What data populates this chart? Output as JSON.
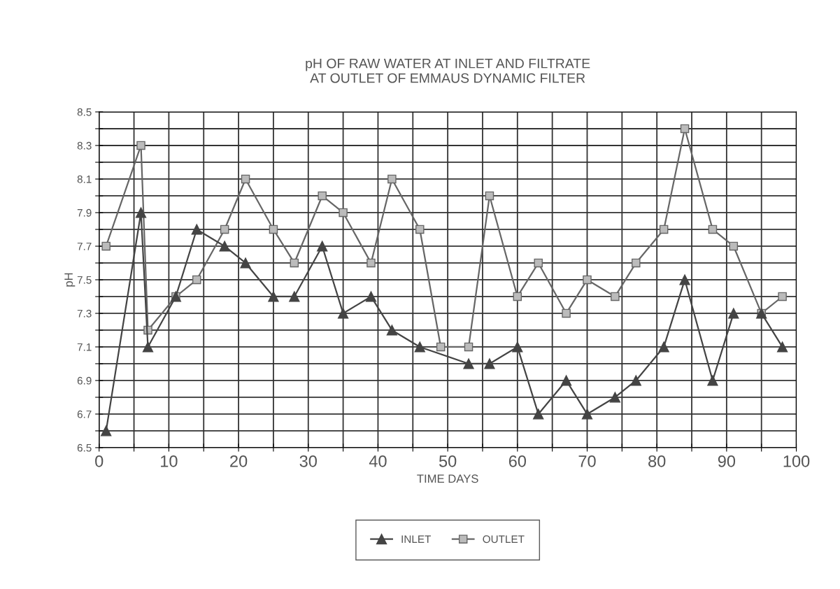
{
  "chart_data": {
    "type": "line",
    "title": "pH OF RAW WATER AT INLET AND FILTRATE\nAT OUTLET OF EMMAUS DYNAMIC FILTER",
    "xlabel": "TIME DAYS",
    "ylabel": "pH",
    "xlim": [
      0,
      100
    ],
    "xticks": [
      0,
      {
        "value": 5,
        "label": null
      },
      10,
      {
        "value": 15,
        "label": null
      },
      20,
      {
        "value": 25,
        "label": null
      },
      30,
      {
        "value": 35,
        "label": null
      },
      40,
      {
        "value": 45,
        "label": null
      },
      50,
      {
        "value": 55,
        "label": null
      },
      60,
      {
        "value": 65,
        "label": null
      },
      70,
      {
        "value": 75,
        "label": null
      },
      80,
      {
        "value": 85,
        "label": null
      },
      90,
      {
        "value": 95,
        "label": null
      },
      100
    ],
    "ylim": [
      6.5,
      8.5
    ],
    "yticks": [
      6.5,
      {
        "value": 6.6,
        "label": null
      },
      6.7,
      {
        "value": 6.8,
        "label": null
      },
      6.9,
      {
        "value": 7.0,
        "label": null
      },
      7.1,
      {
        "value": 7.2,
        "label": null
      },
      7.3,
      {
        "value": 7.4,
        "label": null
      },
      7.5,
      {
        "value": 7.6,
        "label": null
      },
      7.7,
      {
        "value": 7.8,
        "label": null
      },
      7.9,
      {
        "value": 8.0,
        "label": null
      },
      8.1,
      {
        "value": 8.2,
        "label": null
      },
      8.3,
      {
        "value": 8.4,
        "label": null
      },
      8.5
    ],
    "grid": true,
    "legend": "bottom",
    "line_style": "solid",
    "series": [
      {
        "name": "INLET",
        "color": "#444444",
        "marker": "triangle",
        "x": [
          1,
          6,
          7,
          11,
          14,
          18,
          21,
          25,
          28,
          32,
          35,
          39,
          42,
          46,
          53,
          56,
          60,
          63,
          67,
          70,
          74,
          77,
          81,
          84,
          88,
          91,
          95,
          98
        ],
        "values": [
          6.6,
          7.9,
          7.1,
          7.4,
          7.8,
          7.7,
          7.6,
          7.4,
          7.4,
          7.7,
          7.3,
          7.4,
          7.2,
          7.1,
          7.0,
          7.0,
          7.1,
          6.7,
          6.9,
          6.7,
          6.8,
          6.9,
          7.1,
          7.5,
          6.9,
          7.3,
          7.3,
          7.1
        ]
      },
      {
        "name": "OUTLET",
        "color": "#666666",
        "marker": "square",
        "x": [
          1,
          6,
          7,
          11,
          14,
          18,
          21,
          25,
          28,
          32,
          35,
          39,
          42,
          46,
          49,
          53,
          56,
          60,
          63,
          67,
          70,
          74,
          77,
          81,
          84,
          88,
          91,
          95,
          98
        ],
        "values": [
          7.7,
          8.3,
          7.2,
          7.4,
          7.5,
          7.8,
          8.1,
          7.8,
          7.6,
          8.0,
          7.9,
          7.6,
          8.1,
          7.8,
          7.1,
          7.1,
          8.0,
          7.4,
          7.6,
          7.3,
          7.5,
          7.4,
          7.6,
          7.8,
          8.4,
          7.8,
          7.7,
          7.3,
          7.4
        ]
      }
    ]
  }
}
